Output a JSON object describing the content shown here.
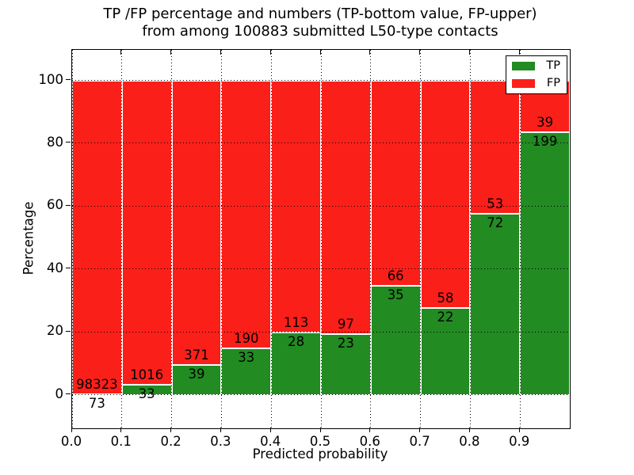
{
  "figure": {
    "title_line1": "TP /FP percentage and numbers (TP-bottom value, FP-upper)",
    "title_line2": "from among 100883 submitted L50-type contacts"
  },
  "chart_data": {
    "type": "bar",
    "subtype": "stacked-percentage-histogram",
    "title": "TP /FP percentage and numbers (TP-bottom value, FP-upper) from among 100883 submitted L50-type contacts",
    "xlabel": "Predicted probability",
    "ylabel": "Percentage",
    "xlim": [
      0.0,
      1.0
    ],
    "ylim": [
      -10.7,
      109.7
    ],
    "grid": "dotted, drawn above bars",
    "legend_position": "upper right",
    "bin_width": 0.1,
    "bin_left_edges": [
      0.0,
      0.1,
      0.2,
      0.3,
      0.4,
      0.5,
      0.6,
      0.7,
      0.8,
      0.9
    ],
    "xtick_labels": [
      "0.0",
      "0.1",
      "0.2",
      "0.3",
      "0.4",
      "0.5",
      "0.6",
      "0.7",
      "0.8",
      "0.9"
    ],
    "ytick_values": [
      0,
      20,
      40,
      60,
      80,
      100
    ],
    "series": [
      {
        "name": "TP",
        "color": "#228b22",
        "counts": [
          73,
          33,
          39,
          33,
          28,
          23,
          35,
          22,
          72,
          199
        ]
      },
      {
        "name": "FP",
        "color": "#fb1f1a",
        "counts": [
          98323,
          1016,
          371,
          190,
          113,
          97,
          66,
          58,
          53,
          39
        ]
      }
    ],
    "tp_percent_heights": [
      0.07,
      3.15,
      9.51,
      14.8,
      19.86,
      19.17,
      34.65,
      27.5,
      57.6,
      83.61
    ],
    "total_contacts": 100883,
    "legend": {
      "entries": [
        {
          "label": "TP",
          "color": "#228b22"
        },
        {
          "label": "FP",
          "color": "#fb1f1a"
        }
      ]
    }
  }
}
